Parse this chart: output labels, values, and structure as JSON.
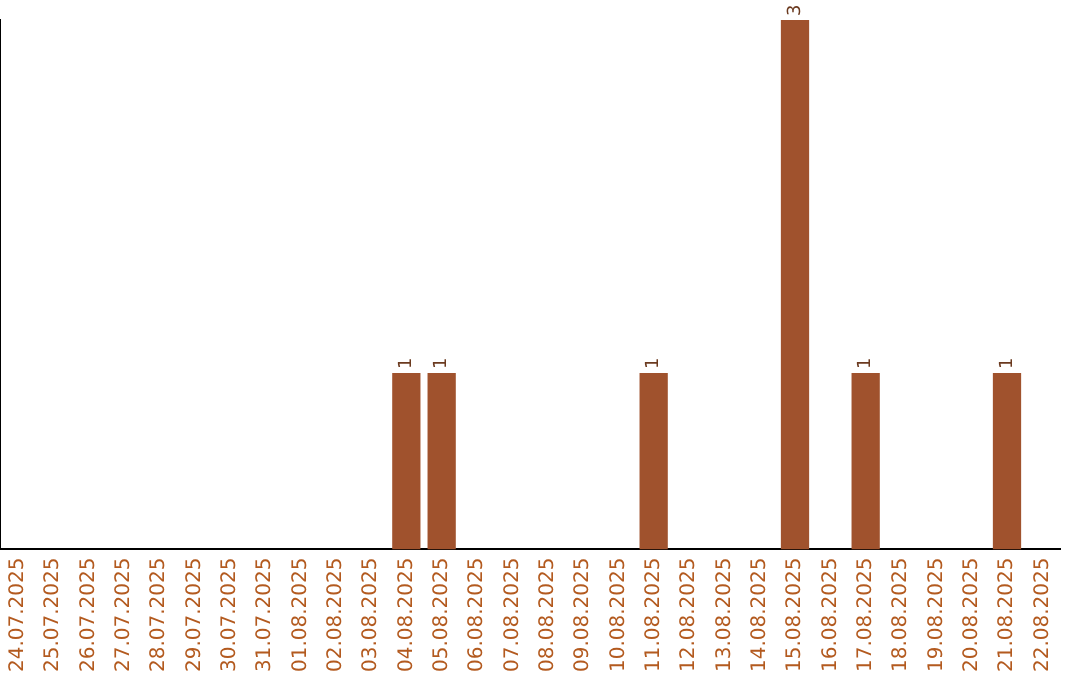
{
  "chart_data": {
    "type": "bar",
    "categories": [
      "24.07.2025",
      "25.07.2025",
      "26.07.2025",
      "27.07.2025",
      "28.07.2025",
      "29.07.2025",
      "30.07.2025",
      "31.07.2025",
      "01.08.2025",
      "02.08.2025",
      "03.08.2025",
      "04.08.2025",
      "05.08.2025",
      "06.08.2025",
      "07.08.2025",
      "08.08.2025",
      "09.08.2025",
      "10.08.2025",
      "11.08.2025",
      "12.08.2025",
      "13.08.2025",
      "14.08.2025",
      "15.08.2025",
      "16.08.2025",
      "17.08.2025",
      "18.08.2025",
      "19.08.2025",
      "20.08.2025",
      "21.08.2025",
      "22.08.2025"
    ],
    "values": [
      0,
      0,
      0,
      0,
      0,
      0,
      0,
      0,
      0,
      0,
      0,
      1,
      1,
      0,
      0,
      0,
      0,
      0,
      1,
      0,
      0,
      0,
      3,
      0,
      1,
      0,
      0,
      0,
      1,
      0
    ],
    "value_labels": [
      null,
      null,
      null,
      null,
      null,
      null,
      null,
      null,
      null,
      null,
      null,
      "1",
      "1",
      null,
      null,
      null,
      null,
      null,
      "1",
      null,
      null,
      null,
      "3",
      null,
      "1",
      null,
      null,
      null,
      "1",
      null
    ],
    "color": "#a0522d",
    "tick_labels": "x",
    "grid": false,
    "legend": false
  }
}
